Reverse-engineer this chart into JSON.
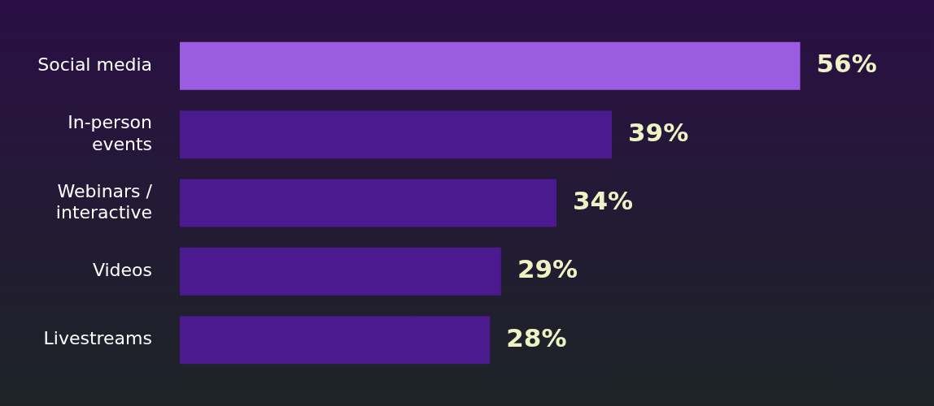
{
  "chart_data": {
    "type": "bar",
    "orientation": "horizontal",
    "categories": [
      "Social media",
      "In-person events",
      "Webinars / interactive",
      "Videos",
      "Livestreams"
    ],
    "values": [
      56,
      39,
      34,
      29,
      28
    ],
    "value_labels": [
      "56%",
      "39%",
      "34%",
      "29%",
      "28%"
    ],
    "colors": [
      "#9a5ce0",
      "#4b1a8e",
      "#4b1a8e",
      "#4b1a8e",
      "#4b1a8e"
    ],
    "tick_labels": "y",
    "legend": false
  }
}
